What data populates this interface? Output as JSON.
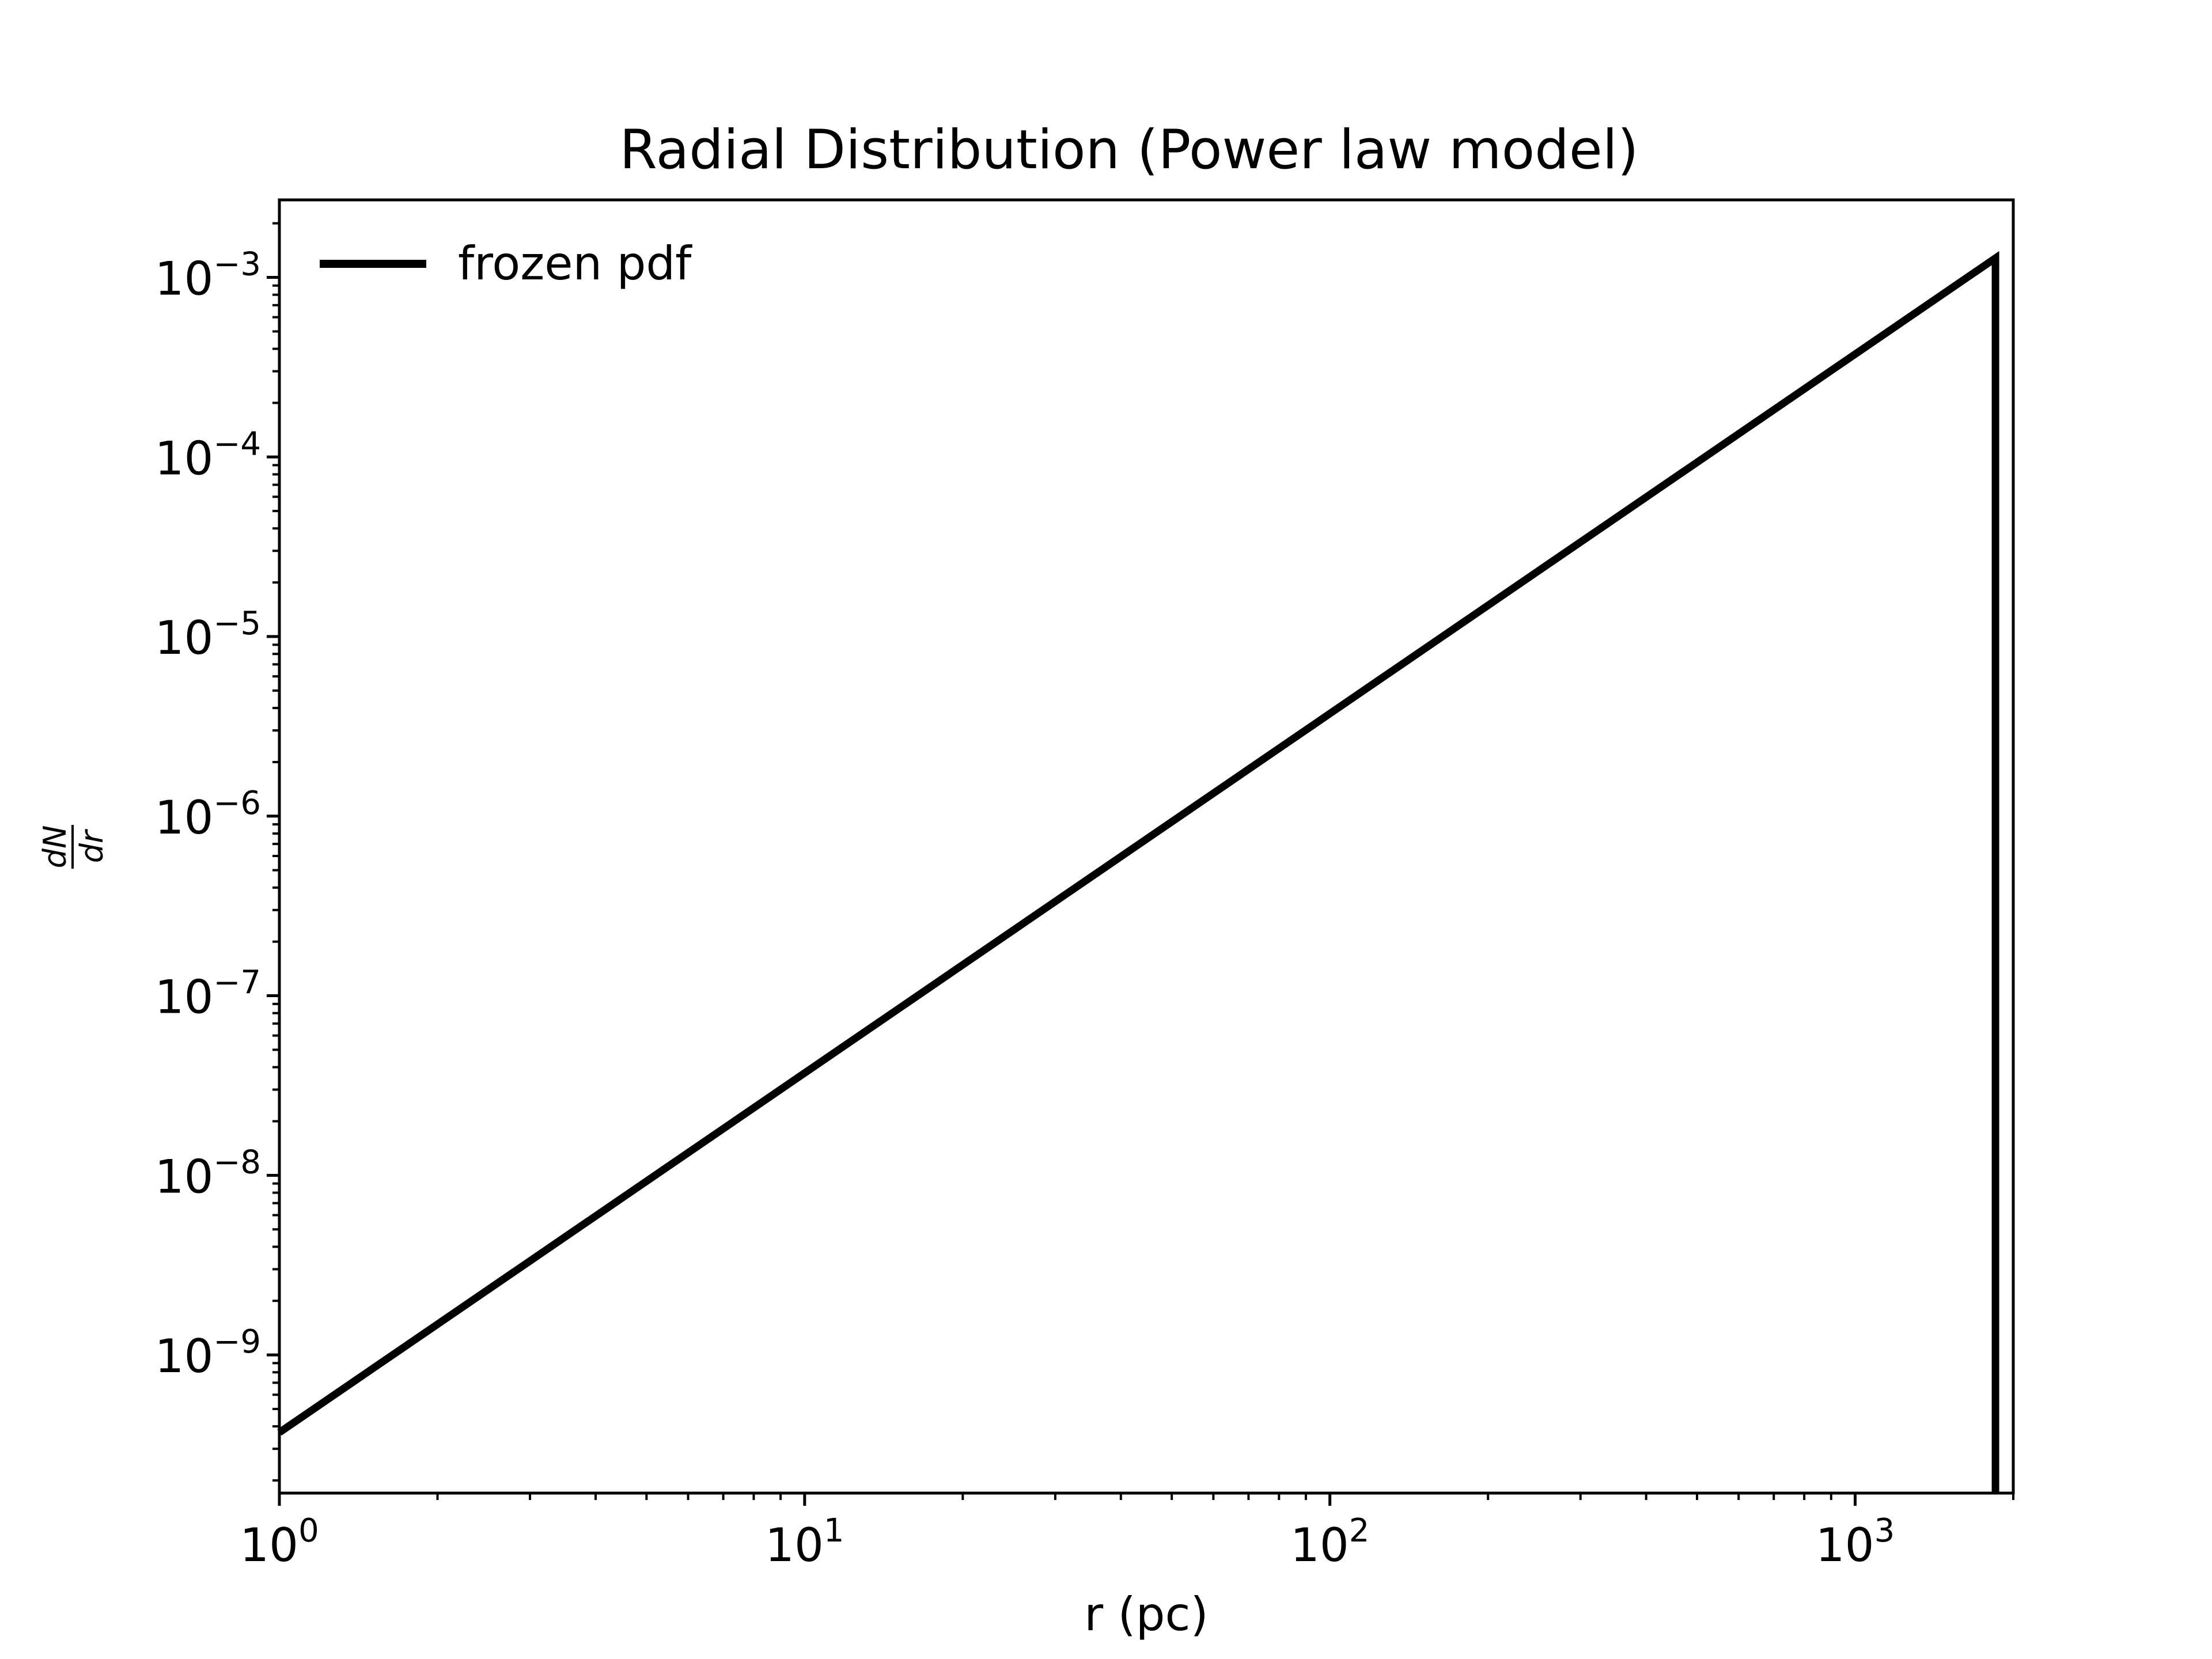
{
  "chart_data": {
    "type": "line",
    "title": "Radial Distribution (Power law model)",
    "xlabel": "r (pc)",
    "ylabel_num": "dN",
    "ylabel_den": "dr",
    "x_scale": "log",
    "y_scale": "log",
    "xlim": [
      1,
      2000
    ],
    "ylim": [
      1.7e-10,
      0.0027
    ],
    "x_ticks": [
      {
        "value": 1,
        "base": "10",
        "exp": "0"
      },
      {
        "value": 10,
        "base": "10",
        "exp": "1"
      },
      {
        "value": 100,
        "base": "10",
        "exp": "2"
      },
      {
        "value": 1000,
        "base": "10",
        "exp": "3"
      }
    ],
    "y_ticks": [
      {
        "value": 1e-09,
        "base": "10",
        "exp": "−9"
      },
      {
        "value": 1e-08,
        "base": "10",
        "exp": "−8"
      },
      {
        "value": 1e-07,
        "base": "10",
        "exp": "−7"
      },
      {
        "value": 1e-06,
        "base": "10",
        "exp": "−6"
      },
      {
        "value": 1e-05,
        "base": "10",
        "exp": "−5"
      },
      {
        "value": 0.0001,
        "base": "10",
        "exp": "−4"
      },
      {
        "value": 0.001,
        "base": "10",
        "exp": "−3"
      }
    ],
    "grid": false,
    "legend": "top-left",
    "series": [
      {
        "name": "frozen pdf",
        "color": "#000000",
        "x": [
          1,
          1850,
          1850
        ],
        "y": [
          3.7e-10,
          0.00128,
          1e-12
        ]
      }
    ]
  }
}
